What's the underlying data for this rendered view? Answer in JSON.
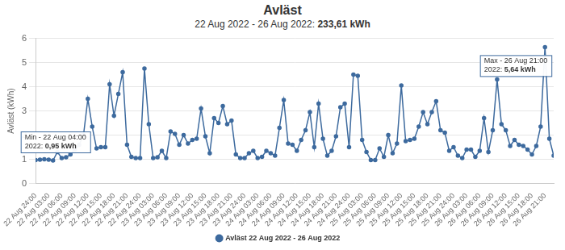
{
  "chart_data": {
    "type": "line",
    "title": "Avläst",
    "subtitle": "22 Aug 2022 - 26 Aug 2022: 233,61 kWh",
    "y_label": "Avläst (kWh)",
    "categories": [
      "22 Aug 24:00",
      null,
      null,
      "22 Aug 03:00",
      null,
      null,
      "22 Aug 06:00",
      null,
      null,
      "22 Aug 09:00",
      null,
      null,
      "22 Aug 12:00",
      null,
      null,
      "22 Aug 15:00",
      null,
      null,
      "22 Aug 18:00",
      null,
      null,
      "22 Aug 21:00",
      null,
      null,
      "22 Aug 24:00",
      null,
      null,
      "23 Aug 03:00",
      null,
      null,
      "23 Aug 06:00",
      null,
      null,
      "23 Aug 09:00",
      null,
      null,
      "23 Aug 12:00",
      null,
      null,
      "23 Aug 15:00",
      null,
      null,
      "23 Aug 18:00",
      null,
      null,
      "23 Aug 21:00",
      null,
      null,
      "23 Aug 24:00",
      null,
      null,
      "24 Aug 03:00",
      null,
      null,
      "24 Aug 06:00",
      null,
      null,
      "24 Aug 09:00",
      null,
      null,
      "24 Aug 12:00",
      null,
      null,
      "24 Aug 15:00",
      null,
      null,
      "24 Aug 18:00",
      null,
      null,
      "24 Aug 21:00",
      null,
      null,
      "24 Aug 24:00",
      null,
      null,
      "25 Aug 03:00",
      null,
      null,
      "25 Aug 06:00",
      null,
      null,
      "25 Aug 09:00",
      null,
      null,
      "25 Aug 12:00",
      null,
      null,
      "25 Aug 15:00",
      null,
      null,
      "25 Aug 18:00",
      null,
      null,
      "25 Aug 21:00",
      null,
      null,
      "25 Aug 24:00",
      null,
      null,
      "26 Aug 03:00",
      null,
      null,
      "26 Aug 06:00",
      null,
      null,
      "26 Aug 09:00",
      null,
      null,
      "26 Aug 12:00",
      null,
      null,
      "26 Aug 15:00",
      null,
      null,
      "26 Aug 18:00",
      null,
      null,
      "26 Aug 21:00",
      null,
      null
    ],
    "series": [
      {
        "name": "Avläst 22 Aug 2022 - 26 Aug 2022",
        "color": "#3d6a9e",
        "marker": "circle",
        "values": [
          0.97,
          0.98,
          1.0,
          0.98,
          0.95,
          1.3,
          1.05,
          1.08,
          1.2,
          1.4,
          1.6,
          2.0,
          3.5,
          2.35,
          1.45,
          1.5,
          1.5,
          4.1,
          2.8,
          3.7,
          4.6,
          1.6,
          1.1,
          1.05,
          1.05,
          4.75,
          2.45,
          1.05,
          1.08,
          1.35,
          1.05,
          2.15,
          2.05,
          1.6,
          2.0,
          1.65,
          1.8,
          1.85,
          3.1,
          1.95,
          1.25,
          2.7,
          2.5,
          3.2,
          2.45,
          2.6,
          1.2,
          1.05,
          1.05,
          1.25,
          1.35,
          1.05,
          1.1,
          1.35,
          1.25,
          1.15,
          2.3,
          3.45,
          1.65,
          1.6,
          1.35,
          1.8,
          2.2,
          2.95,
          1.5,
          3.3,
          1.85,
          1.15,
          1.35,
          1.95,
          3.15,
          3.3,
          1.5,
          4.5,
          4.45,
          1.8,
          1.3,
          0.97,
          0.97,
          1.45,
          1.1,
          2.0,
          1.25,
          1.65,
          4.05,
          1.75,
          1.8,
          1.85,
          2.35,
          2.95,
          2.45,
          2.95,
          3.4,
          2.2,
          2.1,
          1.35,
          1.5,
          1.15,
          1.05,
          1.4,
          1.4,
          1.1,
          1.35,
          2.7,
          1.3,
          2.2,
          4.3,
          2.45,
          2.2,
          1.55,
          1.8,
          1.6,
          1.55,
          1.4,
          1.2,
          1.55,
          2.35,
          5.64,
          1.85,
          1.15
        ]
      }
    ],
    "ylim": [
      0,
      6
    ],
    "yticks": [
      0,
      1,
      2,
      3,
      4,
      5,
      6
    ],
    "grid": true,
    "legend": "bottom",
    "annotations": [
      {
        "value": 0.95,
        "title": "Min - 22 Aug 04:00",
        "text": "2022: 0,95 kWh"
      },
      {
        "value": 5.64,
        "title": "Max - 26 Aug 21:00",
        "text": "2022: 5,64 kWh"
      }
    ]
  }
}
